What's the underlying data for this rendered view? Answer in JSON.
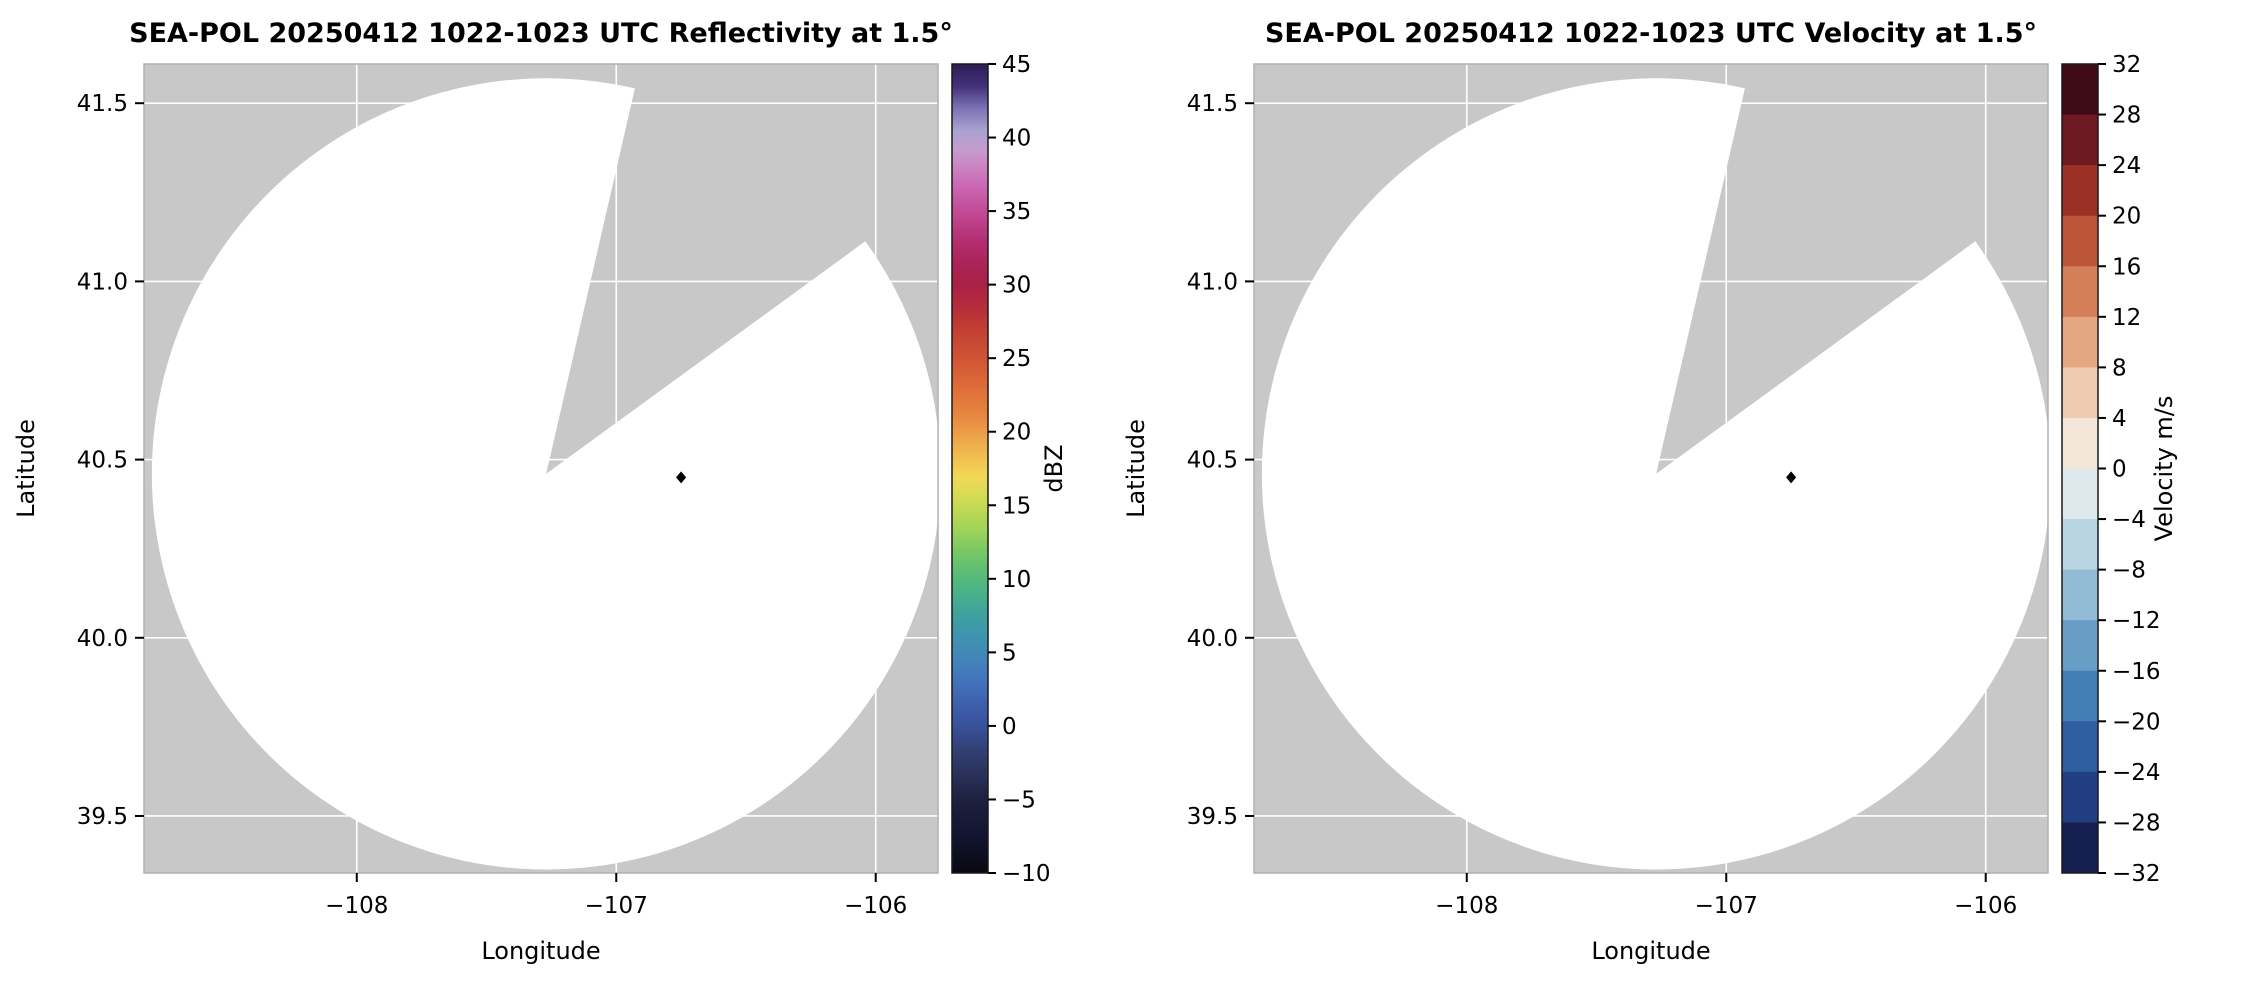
{
  "figure": {
    "background": "#ffffff"
  },
  "colors": {
    "no_data_gray": "#c8c8c8",
    "grid": "#ffffff",
    "frame": "#b0b0b0",
    "coverage_white": "#ffffff",
    "marker_black": "#000000",
    "tick": "#000000",
    "colorbar_frame": "#1a1a1a"
  },
  "chart_data": [
    {
      "type": "radar_ppi",
      "title": "SEA-POL 20250412 1022-1023 UTC Reflectivity at 1.5°",
      "x": {
        "label": "Longitude",
        "min": -108.82,
        "max": -105.76,
        "ticks": [
          {
            "value": -108,
            "label": "−108"
          },
          {
            "value": -107,
            "label": "−107"
          },
          {
            "value": -106,
            "label": "−106"
          }
        ]
      },
      "y": {
        "label": "Latitude",
        "min": 39.34,
        "max": 41.61,
        "ticks": [
          {
            "value": 39.5,
            "label": "39.5"
          },
          {
            "value": 40.0,
            "label": "40.0"
          },
          {
            "value": 40.5,
            "label": "40.5"
          },
          {
            "value": 41.0,
            "label": "41.0"
          },
          {
            "value": 41.5,
            "label": "41.5"
          }
        ]
      },
      "grid": true,
      "radar": {
        "center_lon": -107.27,
        "center_lat": 40.46,
        "range_deg_lon": 1.52,
        "range_deg_lat": 1.11,
        "blocked_azimuth_deg": [
          13,
          54
        ],
        "marker_lon": -106.75,
        "marker_lat": 40.45,
        "echoes": "none visible (coverage area blank/white)"
      },
      "colorbar": {
        "label": "dBZ",
        "min": -10,
        "max": 45,
        "style": "gradient",
        "ticks": [
          {
            "value": 45,
            "label": "45"
          },
          {
            "value": 40,
            "label": "40"
          },
          {
            "value": 35,
            "label": "35"
          },
          {
            "value": 30,
            "label": "30"
          },
          {
            "value": 25,
            "label": "25"
          },
          {
            "value": 20,
            "label": "20"
          },
          {
            "value": 15,
            "label": "15"
          },
          {
            "value": 10,
            "label": "10"
          },
          {
            "value": 5,
            "label": "5"
          },
          {
            "value": 0,
            "label": "0"
          },
          {
            "value": -5,
            "label": "−5"
          },
          {
            "value": -10,
            "label": "−10"
          }
        ],
        "stops": [
          {
            "value": 45,
            "color": "#2b1d55"
          },
          {
            "value": 43.5,
            "color": "#443179"
          },
          {
            "value": 42,
            "color": "#7b72b3"
          },
          {
            "value": 40.5,
            "color": "#a9a2cf"
          },
          {
            "value": 39.2,
            "color": "#c49cce"
          },
          {
            "value": 38,
            "color": "#cc84c3"
          },
          {
            "value": 36.5,
            "color": "#c963b1"
          },
          {
            "value": 35,
            "color": "#c34b96"
          },
          {
            "value": 33,
            "color": "#b32f72"
          },
          {
            "value": 31.5,
            "color": "#ab2458"
          },
          {
            "value": 30,
            "color": "#aa2045"
          },
          {
            "value": 28.5,
            "color": "#b52c3b"
          },
          {
            "value": 27,
            "color": "#c23e33"
          },
          {
            "value": 25,
            "color": "#d05434"
          },
          {
            "value": 23,
            "color": "#de6d39"
          },
          {
            "value": 21,
            "color": "#e78840"
          },
          {
            "value": 20,
            "color": "#ec9c46"
          },
          {
            "value": 18.5,
            "color": "#f0ba4f"
          },
          {
            "value": 17,
            "color": "#f3d757"
          },
          {
            "value": 16,
            "color": "#dedb55"
          },
          {
            "value": 15,
            "color": "#c6da53"
          },
          {
            "value": 13.5,
            "color": "#a4d458"
          },
          {
            "value": 12,
            "color": "#7cc964"
          },
          {
            "value": 10.5,
            "color": "#5dbd74"
          },
          {
            "value": 9,
            "color": "#48b289"
          },
          {
            "value": 7.5,
            "color": "#3ea19f"
          },
          {
            "value": 6,
            "color": "#3f93b0"
          },
          {
            "value": 4.5,
            "color": "#4484bb"
          },
          {
            "value": 3,
            "color": "#4273bc"
          },
          {
            "value": 1.5,
            "color": "#3d60ad"
          },
          {
            "value": 0,
            "color": "#39519b"
          },
          {
            "value": -1.7,
            "color": "#323f72"
          },
          {
            "value": -3.5,
            "color": "#293056"
          },
          {
            "value": -5,
            "color": "#1d213f"
          },
          {
            "value": -7.5,
            "color": "#121530"
          },
          {
            "value": -10,
            "color": "#08080f"
          }
        ]
      }
    },
    {
      "type": "radar_ppi",
      "title": "SEA-POL 20250412 1022-1023 UTC Velocity at 1.5°",
      "x": {
        "label": "Longitude",
        "min": -108.82,
        "max": -105.76,
        "ticks": [
          {
            "value": -108,
            "label": "−108"
          },
          {
            "value": -107,
            "label": "−107"
          },
          {
            "value": -106,
            "label": "−106"
          }
        ]
      },
      "y": {
        "label": "Latitude",
        "min": 39.34,
        "max": 41.61,
        "ticks": [
          {
            "value": 39.5,
            "label": "39.5"
          },
          {
            "value": 40.0,
            "label": "40.0"
          },
          {
            "value": 40.5,
            "label": "40.5"
          },
          {
            "value": 41.0,
            "label": "41.0"
          },
          {
            "value": 41.5,
            "label": "41.5"
          }
        ]
      },
      "grid": true,
      "radar": {
        "center_lon": -107.27,
        "center_lat": 40.46,
        "range_deg_lon": 1.52,
        "range_deg_lat": 1.11,
        "blocked_azimuth_deg": [
          13,
          54
        ],
        "marker_lon": -106.75,
        "marker_lat": 40.45,
        "echoes": "none visible (coverage area blank/white)"
      },
      "colorbar": {
        "label": "Velocity m/s",
        "min": -32,
        "max": 32,
        "style": "segments",
        "ticks": [
          {
            "value": 32,
            "label": "32"
          },
          {
            "value": 28,
            "label": "28"
          },
          {
            "value": 24,
            "label": "24"
          },
          {
            "value": 20,
            "label": "20"
          },
          {
            "value": 16,
            "label": "16"
          },
          {
            "value": 12,
            "label": "12"
          },
          {
            "value": 8,
            "label": "8"
          },
          {
            "value": 4,
            "label": "4"
          },
          {
            "value": 0,
            "label": "0"
          },
          {
            "value": -4,
            "label": "−4"
          },
          {
            "value": -8,
            "label": "−8"
          },
          {
            "value": -12,
            "label": "−12"
          },
          {
            "value": -16,
            "label": "−16"
          },
          {
            "value": -20,
            "label": "−20"
          },
          {
            "value": -24,
            "label": "−24"
          },
          {
            "value": -28,
            "label": "−28"
          },
          {
            "value": -32,
            "label": "−32"
          }
        ],
        "segments": [
          {
            "from": 28,
            "to": 32,
            "color": "#3e0a16"
          },
          {
            "from": 24,
            "to": 28,
            "color": "#6d1a23"
          },
          {
            "from": 20,
            "to": 24,
            "color": "#9b3026"
          },
          {
            "from": 16,
            "to": 20,
            "color": "#bd5538"
          },
          {
            "from": 12,
            "to": 16,
            "color": "#d47f58"
          },
          {
            "from": 8,
            "to": 12,
            "color": "#e3a781"
          },
          {
            "from": 4,
            "to": 8,
            "color": "#eecbae"
          },
          {
            "from": 0,
            "to": 4,
            "color": "#f4e7d9"
          },
          {
            "from": -4,
            "to": 0,
            "color": "#dfe9ec"
          },
          {
            "from": -8,
            "to": -4,
            "color": "#bad5e2"
          },
          {
            "from": -12,
            "to": -8,
            "color": "#92bbd6"
          },
          {
            "from": -16,
            "to": -12,
            "color": "#689dc6"
          },
          {
            "from": -20,
            "to": -16,
            "color": "#437eb5"
          },
          {
            "from": -24,
            "to": -20,
            "color": "#2e5da0"
          },
          {
            "from": -28,
            "to": -24,
            "color": "#223e82"
          },
          {
            "from": -32,
            "to": -28,
            "color": "#162050"
          }
        ]
      }
    }
  ]
}
